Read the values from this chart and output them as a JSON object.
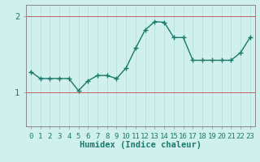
{
  "x": [
    0,
    1,
    2,
    3,
    4,
    5,
    6,
    7,
    8,
    9,
    10,
    11,
    12,
    13,
    14,
    15,
    16,
    17,
    18,
    19,
    20,
    21,
    22,
    23
  ],
  "y": [
    1.27,
    1.18,
    1.18,
    1.18,
    1.18,
    1.02,
    1.15,
    1.22,
    1.22,
    1.18,
    1.32,
    1.58,
    1.82,
    1.93,
    1.92,
    1.72,
    1.72,
    1.42,
    1.42,
    1.42,
    1.42,
    1.42,
    1.52,
    1.72
  ],
  "line_color": "#1a7a6a",
  "marker": "+",
  "marker_size": 4,
  "bg_color": "#cff0ec",
  "grid_color_x": "#b5e0da",
  "grid_color_y": "#c06060",
  "yticks": [
    1,
    2
  ],
  "ylim": [
    0.55,
    2.15
  ],
  "xlim": [
    -0.5,
    23.5
  ],
  "xlabel": "Humidex (Indice chaleur)",
  "xlabel_fontsize": 7.5,
  "tick_fontsize": 6.5,
  "linewidth": 1.0,
  "spine_color": "#888888"
}
